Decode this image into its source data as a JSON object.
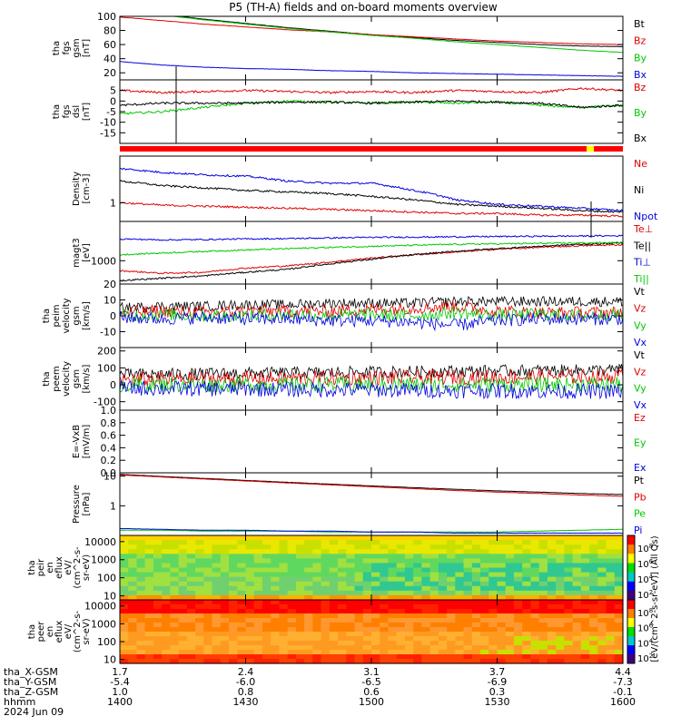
{
  "title": "P5 (TH-A) fields and on-board moments overview",
  "chart_data": [
    {
      "id": "fgs_mag",
      "type": "line",
      "ylabel": [
        "tha",
        "fgs",
        "gsm",
        "[nT]"
      ],
      "ylim": [
        10,
        100
      ],
      "yticks": [
        20,
        40,
        60,
        80,
        100
      ],
      "series": [
        {
          "name": "Bt",
          "color": "#000000",
          "values": [
            110,
            103,
            96,
            90,
            84,
            79,
            74,
            70,
            66,
            63,
            60,
            58,
            57
          ]
        },
        {
          "name": "Bz",
          "color": "#e00000",
          "values": [
            99,
            94,
            89,
            85,
            81,
            78,
            74,
            71,
            68,
            65,
            63,
            61,
            60
          ]
        },
        {
          "name": "By",
          "color": "#00c800",
          "values": [
            108,
            102,
            95,
            89,
            83,
            78,
            73,
            69,
            64,
            60,
            56,
            52,
            49
          ]
        },
        {
          "name": "Bx",
          "color": "#0000e0",
          "values": [
            36,
            31,
            28,
            26,
            25,
            23,
            22,
            20,
            19,
            18,
            17,
            16,
            15
          ]
        }
      ]
    },
    {
      "id": "fgs_dsl",
      "type": "line",
      "ylabel": [
        "tha",
        "fgs",
        "dsl",
        "[nT]"
      ],
      "ylim": [
        -20,
        10
      ],
      "yticks": [
        -15,
        -10,
        -5,
        0,
        5
      ],
      "series": [
        {
          "name": "Bz",
          "color": "#e00000",
          "values": [
            5,
            4,
            4.5,
            5,
            4.5,
            4,
            4.5,
            4,
            5,
            4.5,
            4,
            6,
            5
          ]
        },
        {
          "name": "By",
          "color": "#00c800",
          "values": [
            -6,
            -5,
            -3,
            -1,
            0,
            -0.5,
            -1,
            -0.5,
            -1,
            -0.5,
            -2,
            -3,
            -2
          ]
        },
        {
          "name": "Bx",
          "color": "#000000",
          "values": [
            -2,
            -1,
            -1,
            -1,
            -0.5,
            -0.5,
            -1,
            -0.5,
            0,
            -0.5,
            -1,
            -3,
            -2
          ]
        }
      ]
    },
    {
      "id": "density",
      "type": "line",
      "log": true,
      "ylabel": [
        "Density",
        "[cm-3]"
      ],
      "ylim": [
        0.3,
        20
      ],
      "yticks": [
        1
      ],
      "series": [
        {
          "name": "Ne",
          "color": "#e00000",
          "values": [
            1,
            0.85,
            0.8,
            0.75,
            0.7,
            0.65,
            0.6,
            0.55,
            0.5,
            0.5,
            0.45,
            0.45,
            0.42
          ]
        },
        {
          "name": "Ni",
          "color": "#000000",
          "values": [
            4,
            3,
            2.6,
            2.2,
            2,
            1.8,
            1.5,
            1.2,
            0.9,
            0.8,
            0.7,
            0.6,
            0.55
          ]
        },
        {
          "name": "Npot",
          "color": "#0000e0",
          "values": [
            9,
            7,
            6,
            5.5,
            4,
            3.5,
            3.5,
            2.2,
            1.2,
            0.9,
            0.8,
            0.7,
            0.6
          ]
        }
      ]
    },
    {
      "id": "temperature",
      "type": "line",
      "log": true,
      "ylabel": [
        "magt3",
        "[eV]"
      ],
      "ylim": [
        200,
        15000
      ],
      "yticks": [
        1000
      ],
      "series": [
        {
          "name": "Te⊥",
          "color": "#e00000",
          "values": [
            500,
            420,
            450,
            600,
            700,
            900,
            1200,
            1500,
            1800,
            2200,
            2500,
            2800,
            3000
          ]
        },
        {
          "name": "Te||",
          "color": "#000000",
          "values": [
            250,
            300,
            350,
            450,
            550,
            800,
            1100,
            1500,
            1900,
            2300,
            2700,
            3100,
            3400
          ]
        },
        {
          "name": "Ti⊥",
          "color": "#0000e0",
          "values": [
            4500,
            4200,
            4300,
            4500,
            4600,
            4800,
            5000,
            5100,
            5200,
            5300,
            5400,
            5500,
            5600
          ]
        },
        {
          "name": "Ti||",
          "color": "#00c800",
          "values": [
            1500,
            1700,
            1900,
            2100,
            2300,
            2500,
            2700,
            2900,
            3100,
            3200,
            3300,
            3400,
            3500
          ]
        }
      ]
    },
    {
      "id": "peim_velocity",
      "type": "line",
      "ylabel": [
        "tha",
        "peim",
        "velocity",
        "gsm",
        "[km/s]"
      ],
      "ylim": [
        -20,
        20
      ],
      "yticks": [
        -10,
        0,
        10,
        20
      ],
      "series": [
        {
          "name": "Vt",
          "color": "#000000",
          "values": [
            5,
            6,
            6,
            7,
            7,
            8,
            8,
            8,
            9,
            9,
            9,
            9,
            9
          ]
        },
        {
          "name": "Vz",
          "color": "#e00000",
          "values": [
            2,
            3,
            2,
            3,
            3,
            3,
            4,
            5,
            6,
            3,
            2,
            2,
            2
          ]
        },
        {
          "name": "Vy",
          "color": "#00c800",
          "values": [
            0,
            1,
            0,
            0,
            1,
            0,
            1,
            0,
            2,
            0,
            1,
            0,
            1
          ]
        },
        {
          "name": "Vx",
          "color": "#0000e0",
          "values": [
            -1,
            -2,
            -1,
            -2,
            -2,
            -3,
            -3,
            -4,
            -6,
            -3,
            -2,
            -2,
            -2
          ]
        }
      ]
    },
    {
      "id": "peem_velocity",
      "type": "line",
      "ylabel": [
        "tha",
        "peem",
        "velocity",
        "gsm",
        "[km/s]"
      ],
      "ylim": [
        -150,
        220
      ],
      "yticks": [
        -100,
        0,
        100,
        200
      ],
      "series": [
        {
          "name": "Vt",
          "color": "#000000",
          "values": [
            60,
            62,
            65,
            68,
            70,
            72,
            75,
            78,
            80,
            82,
            84,
            86,
            88
          ]
        },
        {
          "name": "Vz",
          "color": "#e00000",
          "values": [
            30,
            32,
            35,
            35,
            38,
            40,
            40,
            42,
            45,
            45,
            48,
            48,
            50
          ]
        },
        {
          "name": "Vy",
          "color": "#00c800",
          "values": [
            0,
            2,
            0,
            3,
            0,
            2,
            0,
            3,
            0,
            2,
            0,
            3,
            0
          ]
        },
        {
          "name": "Vx",
          "color": "#0000e0",
          "values": [
            -20,
            -22,
            -25,
            -25,
            -28,
            -30,
            -30,
            -32,
            -35,
            -35,
            -38,
            -38,
            -40
          ]
        }
      ]
    },
    {
      "id": "efield",
      "type": "line",
      "ylabel": [
        "E=-VxB",
        "[mV/m]"
      ],
      "ylim": [
        0,
        1
      ],
      "yticks": [
        0.0,
        0.2,
        0.4,
        0.6,
        0.8,
        1.0
      ],
      "series": [
        {
          "name": "Ez",
          "color": "#e00000",
          "values": []
        },
        {
          "name": "Ey",
          "color": "#00c800",
          "values": []
        },
        {
          "name": "Ex",
          "color": "#0000e0",
          "values": []
        }
      ]
    },
    {
      "id": "pressure",
      "type": "line",
      "log": true,
      "ylabel": [
        "Pressure",
        "[nPa]"
      ],
      "ylim": [
        0.1,
        13
      ],
      "yticks": [
        1,
        10
      ],
      "series": [
        {
          "name": "Pt",
          "color": "#000000",
          "values": [
            11.5,
            9.8,
            8.4,
            7.2,
            6.2,
            5.4,
            4.7,
            4.1,
            3.6,
            3.2,
            2.9,
            2.6,
            2.4
          ]
        },
        {
          "name": "Pb",
          "color": "#e00000",
          "values": [
            11,
            9.4,
            8,
            6.9,
            5.9,
            5.1,
            4.4,
            3.8,
            3.3,
            2.9,
            2.6,
            2.3,
            2.1
          ]
        },
        {
          "name": "Pe",
          "color": "#00c800",
          "values": [
            0.15,
            0.15,
            0.14,
            0.14,
            0.14,
            0.13,
            0.13,
            0.13,
            0.13,
            0.13,
            0.14,
            0.15,
            0.16
          ]
        },
        {
          "name": "Pi",
          "color": "#0000e0",
          "values": [
            0.17,
            0.16,
            0.15,
            0.15,
            0.14,
            0.14,
            0.13,
            0.13,
            0.12,
            0.12,
            0.12,
            0.12,
            0.12
          ]
        }
      ]
    },
    {
      "id": "peir_eflux",
      "type": "heatmap",
      "ylabel": [
        "tha",
        "peir",
        "en",
        "eflux",
        "eV/",
        "(cm^2-s-",
        "sr-eV)"
      ],
      "yticks": [
        "10",
        "100",
        "1000",
        "10000"
      ],
      "colorbar_ticks": [
        "10^8",
        "10^6",
        "10^4",
        "10^2"
      ]
    },
    {
      "id": "peer_eflux",
      "type": "heatmap",
      "ylabel": [
        "tha",
        "peer",
        "en",
        "eflux",
        "eV/",
        "(cm^2-s-",
        "sr-eV)"
      ],
      "yticks": [
        "10",
        "100",
        "1000",
        "10000"
      ],
      "colorbar_ticks": [
        "10^8",
        "10^6",
        "10^4",
        "10^2"
      ]
    }
  ],
  "colorbar_label": "[eV/(cm^2-s-sr-eV)] (All Qs)",
  "x_axis": {
    "ticks": [
      {
        "hhmm": "1400",
        "x_gsm": "1.7",
        "y_gsm": "-5.4",
        "z_gsm": "1.0"
      },
      {
        "hhmm": "1430",
        "x_gsm": "2.4",
        "y_gsm": "-6.0",
        "z_gsm": "0.8"
      },
      {
        "hhmm": "1500",
        "x_gsm": "3.1",
        "y_gsm": "-6.5",
        "z_gsm": "0.6"
      },
      {
        "hhmm": "1530",
        "x_gsm": "3.7",
        "y_gsm": "-6.9",
        "z_gsm": "0.3"
      },
      {
        "hhmm": "1600",
        "x_gsm": "4.4",
        "y_gsm": "-7.3",
        "z_gsm": "-0.1"
      }
    ],
    "row_labels": [
      "tha_X-GSM",
      "tha_Y-GSM",
      "tha_Z-GSM",
      "hhmm"
    ],
    "date": "2024 Jun 09"
  },
  "mode_bar": {
    "colors": [
      "#ff0000",
      "#ffff00"
    ]
  }
}
